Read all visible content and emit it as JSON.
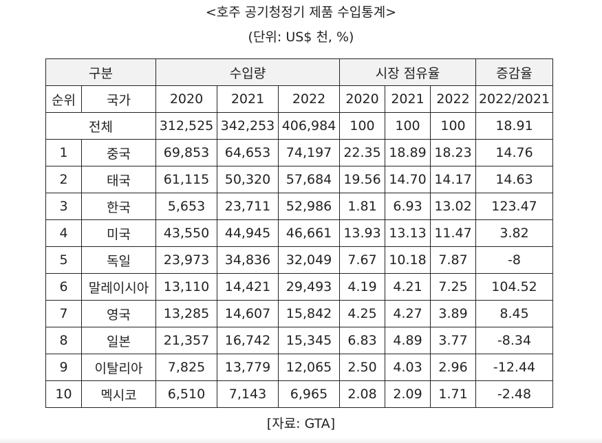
{
  "title": "<호주 공기청정기 제품 수입통계>",
  "unit": "(단위: US$ 천, %)",
  "source": "[자료: GTA]",
  "table": {
    "header_groups": {
      "category": "구분",
      "import_amount": "수입량",
      "market_share": "시장 점유율",
      "growth_rate": "증감율"
    },
    "sub_headers": {
      "rank": "순위",
      "country": "국가",
      "import_years": [
        "2020",
        "2021",
        "2022"
      ],
      "share_years": [
        "2020",
        "2021",
        "2022"
      ],
      "growth_period": "2022/2021"
    },
    "total_row": {
      "label": "전체",
      "imports": [
        "312,525",
        "342,253",
        "406,984"
      ],
      "shares": [
        "100",
        "100",
        "100"
      ],
      "growth": "18.91"
    },
    "rows": [
      {
        "rank": "1",
        "country": "중국",
        "imports": [
          "69,853",
          "64,653",
          "74,197"
        ],
        "shares": [
          "22.35",
          "18.89",
          "18.23"
        ],
        "growth": "14.76"
      },
      {
        "rank": "2",
        "country": "태국",
        "imports": [
          "61,115",
          "50,320",
          "57,684"
        ],
        "shares": [
          "19.56",
          "14.70",
          "14.17"
        ],
        "growth": "14.63"
      },
      {
        "rank": "3",
        "country": "한국",
        "imports": [
          "5,653",
          "23,711",
          "52,986"
        ],
        "shares": [
          "1.81",
          "6.93",
          "13.02"
        ],
        "growth": "123.47"
      },
      {
        "rank": "4",
        "country": "미국",
        "imports": [
          "43,550",
          "44,945",
          "46,661"
        ],
        "shares": [
          "13.93",
          "13.13",
          "11.47"
        ],
        "growth": "3.82"
      },
      {
        "rank": "5",
        "country": "독일",
        "imports": [
          "23,973",
          "34,836",
          "32,049"
        ],
        "shares": [
          "7.67",
          "10.18",
          "7.87"
        ],
        "growth": "-8"
      },
      {
        "rank": "6",
        "country": "말레이시아",
        "imports": [
          "13,110",
          "14,421",
          "29,493"
        ],
        "shares": [
          "4.19",
          "4.21",
          "7.25"
        ],
        "growth": "104.52"
      },
      {
        "rank": "7",
        "country": "영국",
        "imports": [
          "13,285",
          "14,607",
          "15,842"
        ],
        "shares": [
          "4.25",
          "4.27",
          "3.89"
        ],
        "growth": "8.45"
      },
      {
        "rank": "8",
        "country": "일본",
        "imports": [
          "21,357",
          "16,742",
          "15,345"
        ],
        "shares": [
          "6.83",
          "4.89",
          "3.77"
        ],
        "growth": "-8.34"
      },
      {
        "rank": "9",
        "country": "이탈리아",
        "imports": [
          "7,825",
          "13,779",
          "12,065"
        ],
        "shares": [
          "2.50",
          "4.03",
          "2.96"
        ],
        "growth": "-12.44"
      },
      {
        "rank": "10",
        "country": "멕시코",
        "imports": [
          "6,510",
          "7,143",
          "6,965"
        ],
        "shares": [
          "2.08",
          "2.09",
          "1.71"
        ],
        "growth": "-2.48"
      }
    ]
  }
}
